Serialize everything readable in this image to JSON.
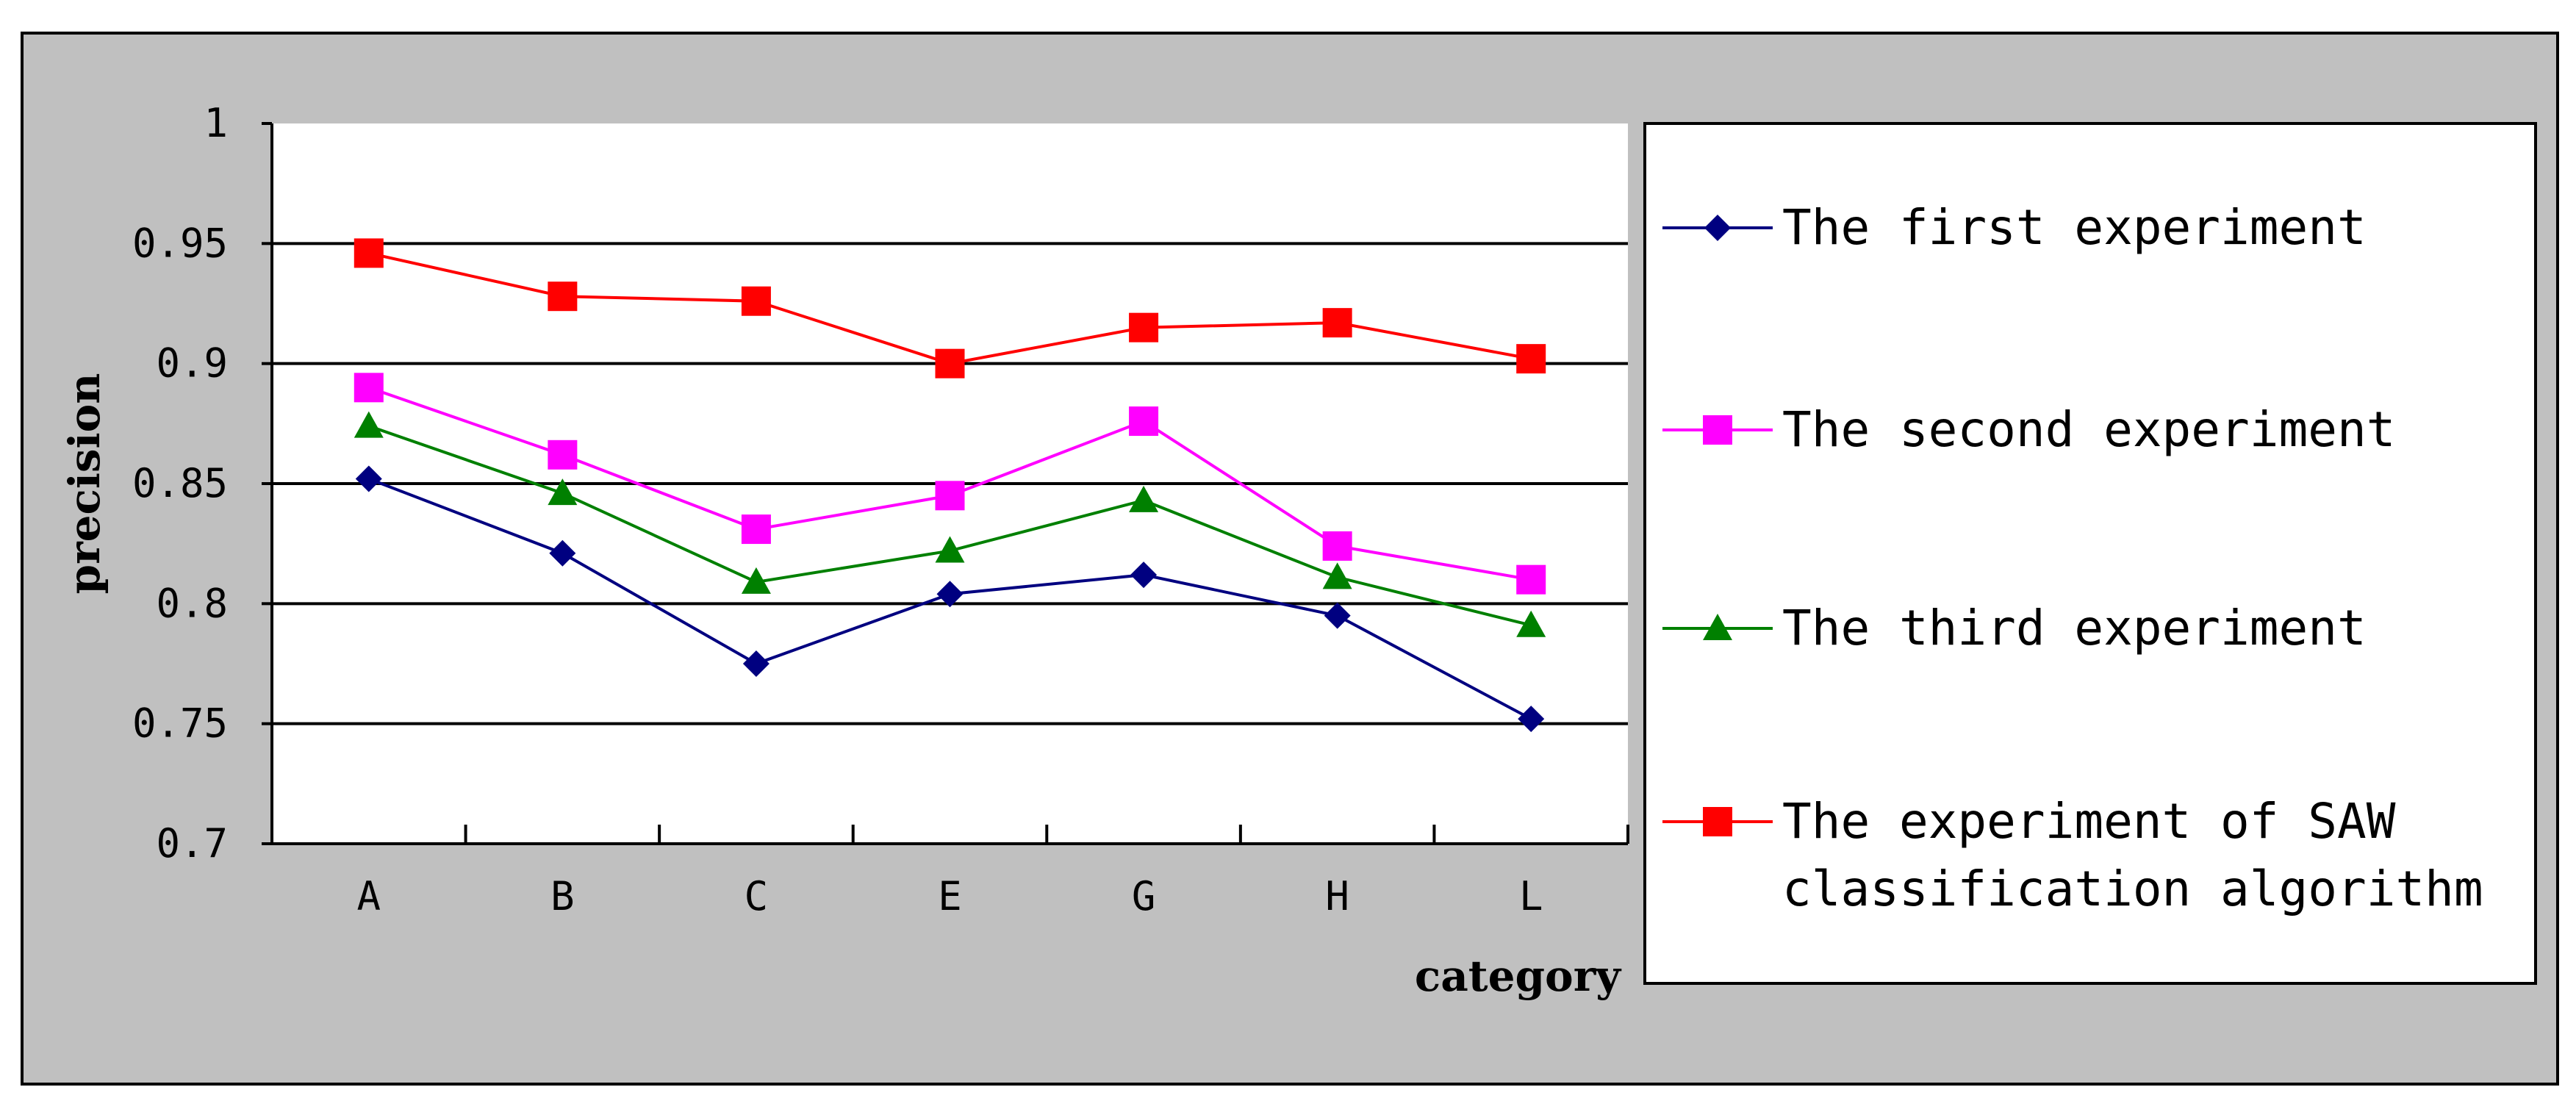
{
  "chart_data": {
    "type": "line",
    "categories": [
      "A",
      "B",
      "C",
      "E",
      "G",
      "H",
      "L"
    ],
    "series": [
      {
        "name": "The first experiment",
        "values": [
          0.852,
          0.821,
          0.775,
          0.804,
          0.812,
          0.795,
          0.752
        ],
        "color": "#000080",
        "marker": "diamond"
      },
      {
        "name": "The second experiment",
        "values": [
          0.89,
          0.862,
          0.831,
          0.845,
          0.876,
          0.824,
          0.81
        ],
        "color": "#ff00ff",
        "marker": "square"
      },
      {
        "name": "The third experiment",
        "values": [
          0.874,
          0.846,
          0.809,
          0.822,
          0.843,
          0.811,
          0.791
        ],
        "color": "#008000",
        "marker": "triangle"
      },
      {
        "name": "The experiment of SAW classification algorithm",
        "name_lines": [
          "The experiment of SAW",
          "classification algorithm"
        ],
        "values": [
          0.946,
          0.928,
          0.926,
          0.9,
          0.915,
          0.917,
          0.902
        ],
        "color": "#ff0000",
        "marker": "square"
      }
    ],
    "yticks": [
      "0.7",
      "0.75",
      "0.8",
      "0.85",
      "0.9",
      "0.95",
      "1"
    ],
    "ylim": [
      0.7,
      1.0
    ],
    "xlabel": "category",
    "ylabel": "precision",
    "grid": "horizontal",
    "legend_position": "right",
    "colors": {
      "frame_background": "#c0c0c0",
      "plot_background": "#ffffff",
      "legend_background": "#ffffff"
    }
  }
}
